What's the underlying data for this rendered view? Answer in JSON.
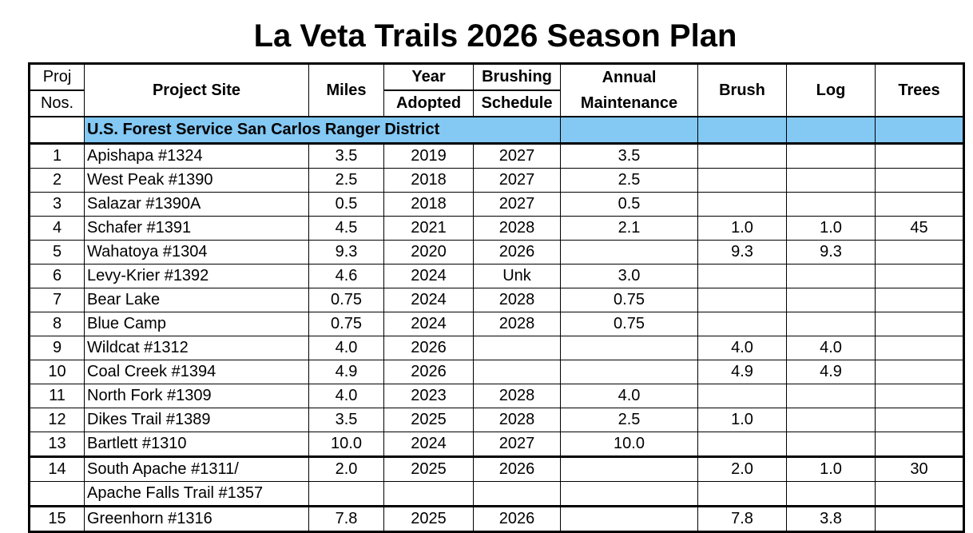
{
  "title": "La Veta Trails 2026 Season Plan",
  "headers": {
    "proj_top": "Proj",
    "proj_bottom": "Nos.",
    "site": "Project Site",
    "miles": "Miles",
    "year_top": "Year",
    "year_bottom": "Adopted",
    "brushing_top": "Brushing",
    "brushing_bottom": "Schedule",
    "annual_top": "Annual",
    "annual_bottom": "Maintenance",
    "brush": "Brush",
    "log": "Log",
    "trees": "Trees"
  },
  "district": "U.S. Forest Service San Carlos Ranger District",
  "rows": [
    [
      "1",
      "Apishapa #1324",
      "3.5",
      "2019",
      "2027",
      "3.5",
      "",
      "",
      ""
    ],
    [
      "2",
      "West Peak #1390",
      "2.5",
      "2018",
      "2027",
      "2.5",
      "",
      "",
      ""
    ],
    [
      "3",
      "Salazar #1390A",
      "0.5",
      "2018",
      "2027",
      "0.5",
      "",
      "",
      ""
    ],
    [
      "4",
      "Schafer #1391",
      "4.5",
      "2021",
      "2028",
      "2.1",
      "1.0",
      "1.0",
      "45"
    ],
    [
      "5",
      "Wahatoya #1304",
      "9.3",
      "2020",
      "2026",
      "",
      "9.3",
      "9.3",
      ""
    ],
    [
      "6",
      "Levy-Krier #1392",
      "4.6",
      "2024",
      "Unk",
      "3.0",
      "",
      "",
      ""
    ],
    [
      "7",
      "Bear Lake",
      "0.75",
      "2024",
      "2028",
      "0.75",
      "",
      "",
      ""
    ],
    [
      "8",
      "Blue Camp",
      "0.75",
      "2024",
      "2028",
      "0.75",
      "",
      "",
      ""
    ],
    [
      "9",
      "Wildcat #1312",
      "4.0",
      "2026",
      "",
      "",
      "4.0",
      "4.0",
      ""
    ],
    [
      "10",
      "Coal Creek #1394",
      "4.9",
      "2026",
      "",
      "",
      "4.9",
      "4.9",
      ""
    ],
    [
      "11",
      "North Fork #1309",
      "4.0",
      "2023",
      "2028",
      "4.0",
      "",
      "",
      ""
    ],
    [
      "12",
      "Dikes Trail #1389",
      "3.5",
      "2025",
      "2028",
      "2.5",
      "1.0",
      "",
      ""
    ],
    [
      "13",
      "Bartlett  #1310",
      "10.0",
      "2024",
      "2027",
      "10.0",
      "",
      "",
      ""
    ],
    [
      "14",
      "South Apache  #1311/",
      "2.0",
      "2025",
      "2026",
      "",
      "2.0",
      "1.0",
      "30"
    ],
    [
      "",
      "Apache Falls Trail #1357",
      "",
      "",
      "",
      "",
      "",
      "",
      ""
    ],
    [
      "15",
      "Greenhorn #1316",
      "7.8",
      "2025",
      "2026",
      "",
      "7.8",
      "3.8",
      ""
    ]
  ]
}
